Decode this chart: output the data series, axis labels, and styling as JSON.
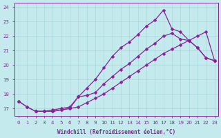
{
  "xlabel": "Windchill (Refroidissement éolien,°C)",
  "bg_color": "#c5eaed",
  "line_color": "#882299",
  "grid_color": "#a8d8da",
  "xlim_min": -0.5,
  "xlim_max": 23.4,
  "ylim_min": 16.5,
  "ylim_max": 24.3,
  "yticks": [
    17,
    18,
    19,
    20,
    21,
    22,
    23,
    24
  ],
  "xticks": [
    0,
    1,
    2,
    3,
    4,
    5,
    6,
    7,
    8,
    9,
    10,
    11,
    12,
    13,
    14,
    15,
    16,
    17,
    18,
    19,
    20,
    21,
    22,
    23
  ],
  "line1_x": [
    0,
    1,
    2,
    3,
    4,
    5,
    6,
    7,
    8,
    9,
    10,
    11,
    12,
    13,
    14,
    15,
    16,
    17,
    18,
    19,
    20,
    21,
    22,
    23
  ],
  "line1_y": [
    17.5,
    17.1,
    16.8,
    16.8,
    16.8,
    16.9,
    17.0,
    17.8,
    18.4,
    19.0,
    19.8,
    20.6,
    21.2,
    21.6,
    22.1,
    22.7,
    23.1,
    23.8,
    22.5,
    22.3,
    21.7,
    21.2,
    20.5,
    20.3
  ],
  "line2_x": [
    2,
    3,
    4,
    5,
    6,
    7,
    8,
    9,
    10,
    11,
    12,
    13,
    14,
    15,
    16,
    17,
    18,
    19,
    20,
    21,
    22,
    23
  ],
  "line2_y": [
    16.8,
    16.8,
    16.9,
    17.0,
    17.1,
    17.8,
    17.9,
    18.1,
    18.7,
    19.2,
    19.7,
    20.1,
    20.6,
    21.1,
    21.5,
    22.0,
    22.2,
    21.8,
    21.7,
    21.2,
    20.5,
    20.3
  ],
  "line3_x": [
    0,
    1,
    2,
    3,
    4,
    5,
    6,
    7,
    8,
    9,
    10,
    11,
    12,
    13,
    14,
    15,
    16,
    17,
    18,
    19,
    20,
    21,
    22,
    23
  ],
  "line3_y": [
    17.5,
    17.1,
    16.8,
    16.8,
    16.8,
    16.9,
    17.0,
    17.1,
    17.4,
    17.7,
    18.0,
    18.4,
    18.8,
    19.2,
    19.6,
    20.0,
    20.4,
    20.8,
    21.1,
    21.4,
    21.7,
    22.0,
    22.3,
    20.3
  ]
}
